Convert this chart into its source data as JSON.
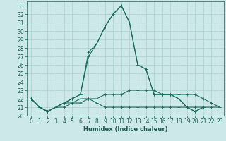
{
  "xlabel": "Humidex (Indice chaleur)",
  "x_values": [
    0,
    1,
    2,
    3,
    4,
    5,
    6,
    7,
    8,
    9,
    10,
    11,
    12,
    13,
    14,
    15,
    16,
    17,
    18,
    19,
    20,
    21,
    22,
    23
  ],
  "series": [
    {
      "y": [
        22,
        21,
        20.5,
        21,
        21,
        21.5,
        21.5,
        22,
        22,
        22.5,
        22.5,
        22.5,
        23,
        23,
        23,
        23,
        22.5,
        22.5,
        22.5,
        22.5,
        22.5,
        22,
        21.5,
        21
      ],
      "color": "#1a6b5c",
      "linewidth": 0.8,
      "marker": "+"
    },
    {
      "y": [
        22,
        21,
        20.5,
        21,
        21.5,
        21.5,
        22,
        22,
        21.5,
        21,
        21,
        21,
        21,
        21,
        21,
        21,
        21,
        21,
        21,
        21,
        21,
        21,
        21,
        21
      ],
      "color": "#1a6b5c",
      "linewidth": 0.8,
      "marker": "+"
    },
    {
      "y": [
        22,
        21,
        20.5,
        21,
        21.5,
        22,
        22.5,
        27.5,
        28.5,
        30.5,
        32,
        33,
        31,
        26,
        25.5,
        22.5,
        22.5,
        22.5,
        22,
        21,
        20.5,
        21,
        null,
        null
      ],
      "color": "#1a6b5c",
      "linewidth": 0.8,
      "marker": "+"
    },
    {
      "y": [
        22,
        21,
        20.5,
        21,
        21.5,
        22,
        22.5,
        27,
        28.5,
        30.5,
        32,
        33,
        31,
        26,
        25.5,
        22.5,
        22.5,
        22.5,
        22,
        21,
        20.5,
        21,
        null,
        null
      ],
      "color": "#1a6b5c",
      "linewidth": 0.8,
      "marker": "+"
    }
  ],
  "ylim": [
    20,
    33.5
  ],
  "xlim": [
    -0.5,
    23.5
  ],
  "yticks": [
    20,
    21,
    22,
    23,
    24,
    25,
    26,
    27,
    28,
    29,
    30,
    31,
    32,
    33
  ],
  "xticks": [
    0,
    1,
    2,
    3,
    4,
    5,
    6,
    7,
    8,
    9,
    10,
    11,
    12,
    13,
    14,
    15,
    16,
    17,
    18,
    19,
    20,
    21,
    22,
    23
  ],
  "bg_color": "#cde8e8",
  "grid_color": "#aacfcf",
  "text_color": "#1a5c50",
  "axis_fontsize": 6.0,
  "tick_fontsize": 5.5
}
